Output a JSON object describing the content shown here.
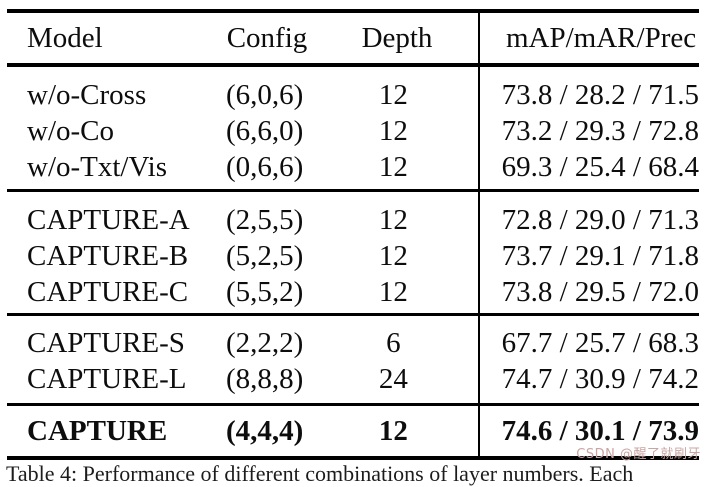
{
  "colors": {
    "text": "#0d0d0d",
    "rule": "#000000",
    "watermark": "#c9a5a2",
    "background": "#ffffff"
  },
  "header": {
    "model": "Model",
    "config": "Config",
    "depth": "Depth",
    "metrics": "mAP/mAR/Prec"
  },
  "groups": [
    {
      "rows": [
        {
          "model": "w/o-Cross",
          "config": "(6,0,6)",
          "depth": "12",
          "metrics": "73.8 / 28.2 / 71.5"
        },
        {
          "model": "w/o-Co",
          "config": "(6,6,0)",
          "depth": "12",
          "metrics": "73.2 / 29.3 / 72.8"
        },
        {
          "model": "w/o-Txt/Vis",
          "config": "(0,6,6)",
          "depth": "12",
          "metrics": "69.3 / 25.4 / 68.4"
        }
      ]
    },
    {
      "rows": [
        {
          "model": "CAPTURE-A",
          "config": "(2,5,5)",
          "depth": "12",
          "metrics": "72.8 / 29.0 / 71.3"
        },
        {
          "model": "CAPTURE-B",
          "config": "(5,2,5)",
          "depth": "12",
          "metrics": "73.7 / 29.1 / 71.8"
        },
        {
          "model": "CAPTURE-C",
          "config": "(5,5,2)",
          "depth": "12",
          "metrics": "73.8 / 29.5 / 72.0"
        }
      ]
    },
    {
      "rows": [
        {
          "model": "CAPTURE-S",
          "config": "(2,2,2)",
          "depth": "6",
          "metrics": "67.7 / 25.7 / 68.3"
        },
        {
          "model": "CAPTURE-L",
          "config": "(8,8,8)",
          "depth": "24",
          "metrics": "74.7 / 30.9 / 74.2"
        }
      ]
    },
    {
      "rows": [
        {
          "model": "CAPTURE",
          "config": "(4,4,4)",
          "depth": "12",
          "metrics": "74.6 / 30.1 / 73.9",
          "emphasis": "bold"
        }
      ]
    }
  ],
  "caption_fragment": "Table 4: Performance of different combinations of layer numbers. Each",
  "watermark": "CSDN @醒了就刷牙"
}
